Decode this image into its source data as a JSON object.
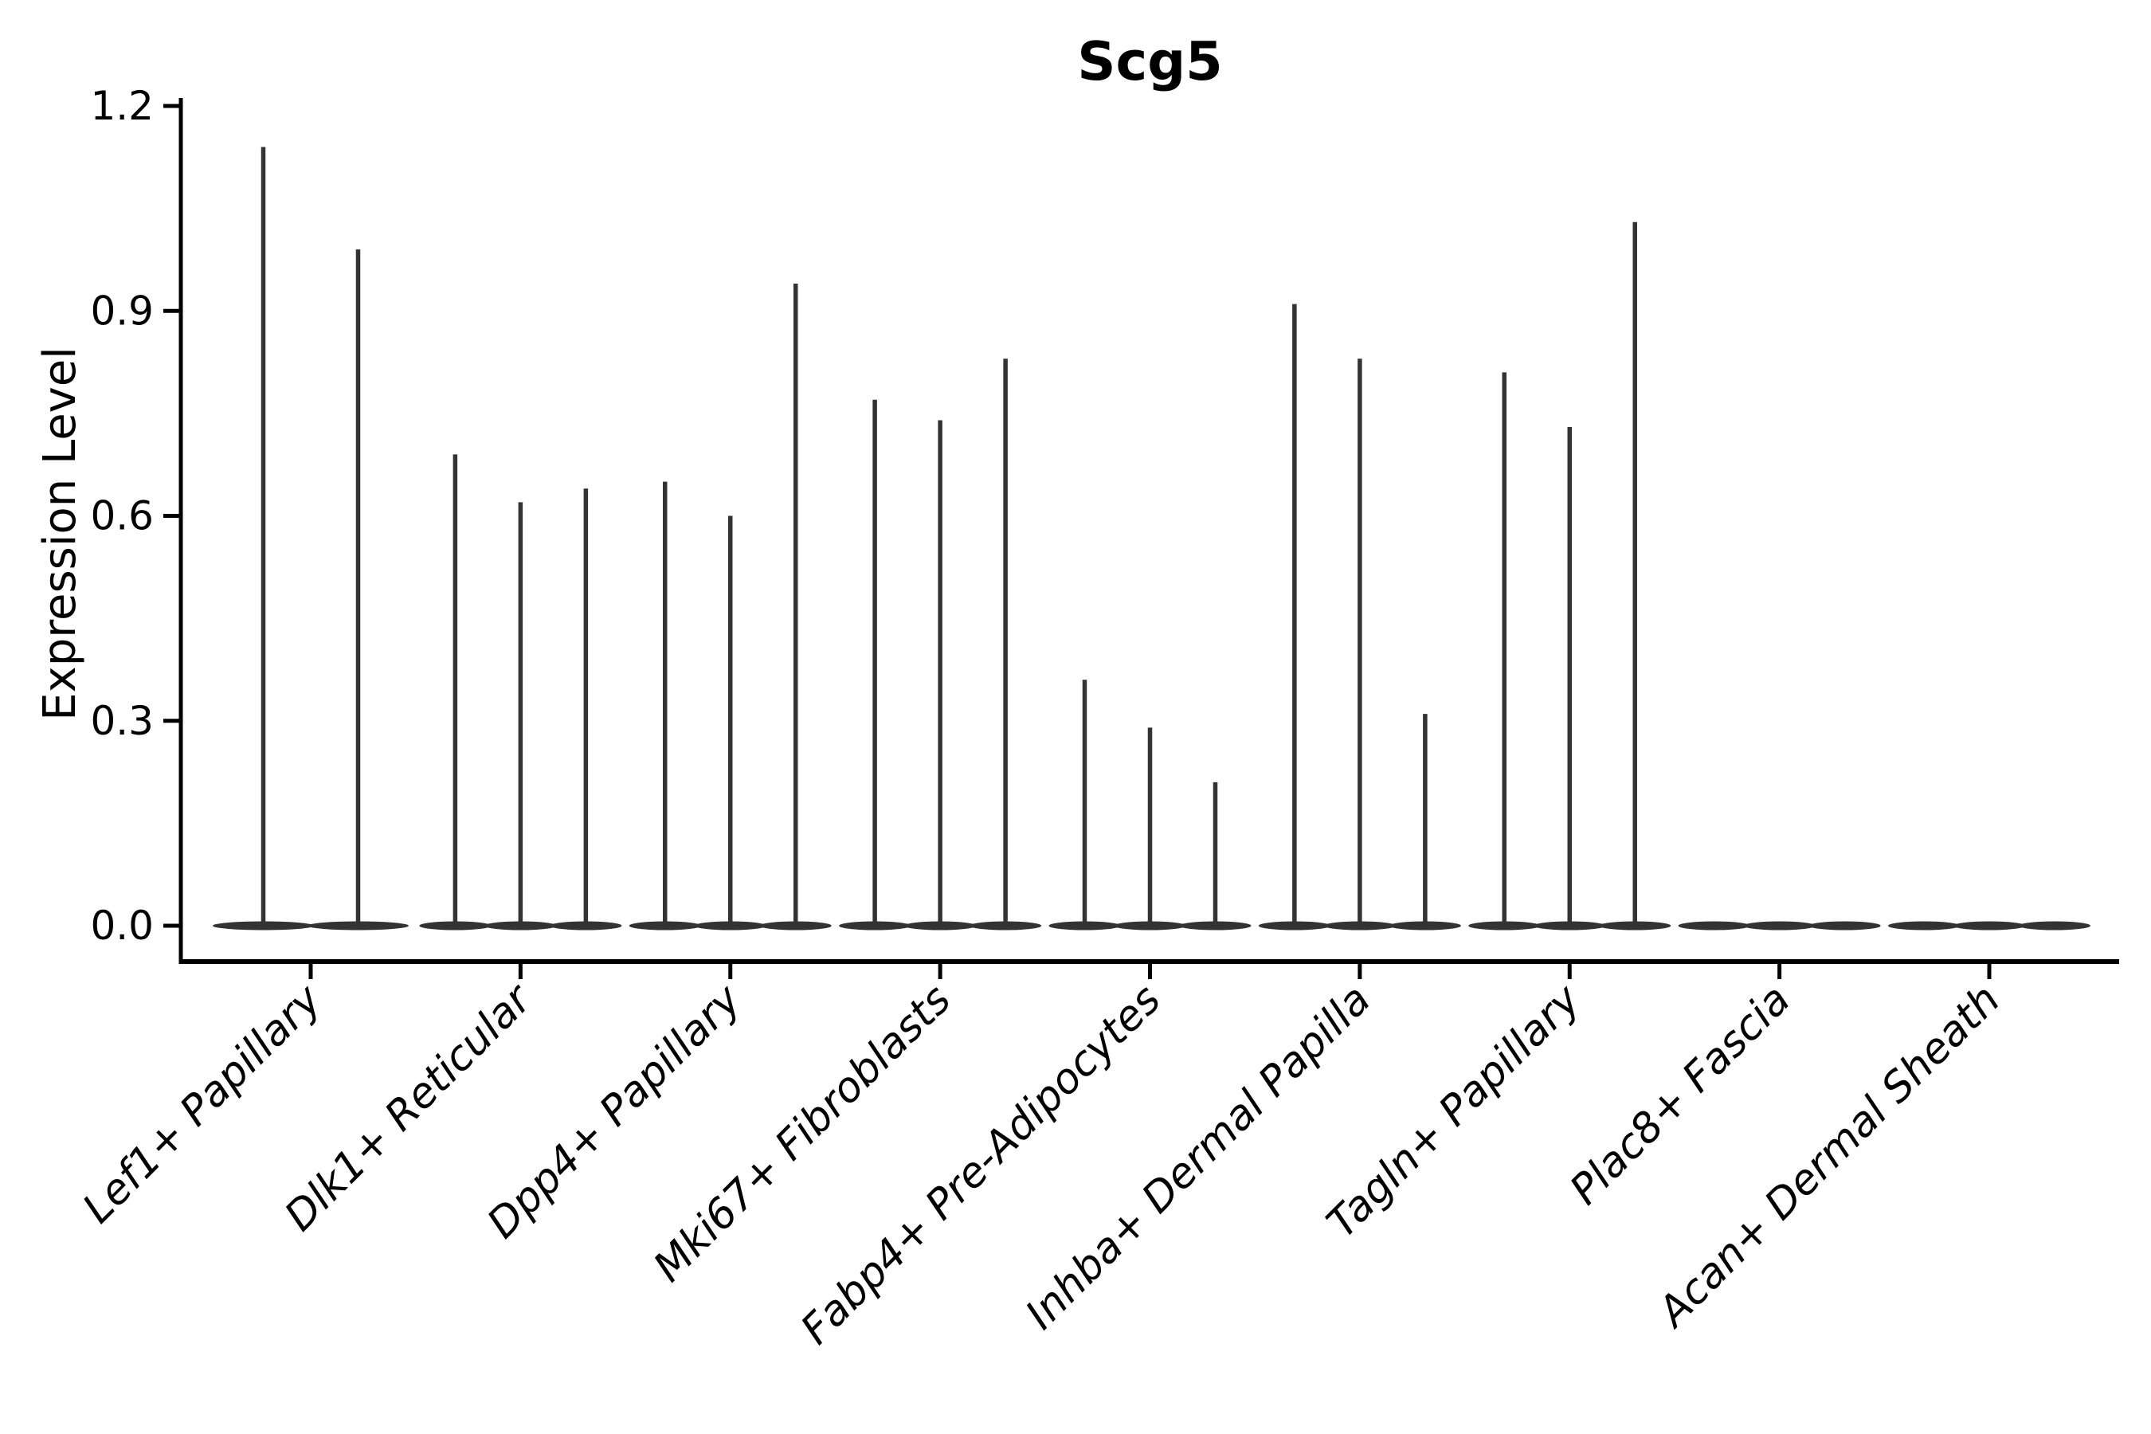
{
  "figure": {
    "title": "Scg5",
    "y_axis_title": "Expression Level"
  },
  "chart_data": {
    "type": "violin",
    "title": "Scg5",
    "xlabel": "",
    "ylabel": "Expression Level",
    "ylim": [
      0.0,
      1.26
    ],
    "yticks": [
      0.0,
      0.3,
      0.6,
      0.9,
      1.2
    ],
    "ytick_labels": [
      "0.0",
      "0.3",
      "0.6",
      "0.9",
      "1.2"
    ],
    "grid": false,
    "legend_position": "none",
    "categories": [
      "Lef1+ Papillary",
      "Dlk1+ Reticular",
      "Dpp4+ Papillary",
      "Mki67+ Fibroblasts",
      "Fabp4+ Pre-Adipocytes",
      "Inhba+ Dermal Papilla",
      "Tagln+ Papillary",
      "Plac8+ Fascia",
      "Acan+ Dermal Sheath"
    ],
    "groups": [
      {
        "label": "Lef1+ Papillary",
        "violin_peaks": [
          1.14,
          0.99
        ]
      },
      {
        "label": "Dlk1+ Reticular",
        "violin_peaks": [
          0.69,
          0.62,
          0.64
        ]
      },
      {
        "label": "Dpp4+ Papillary",
        "violin_peaks": [
          0.65,
          0.6,
          0.94
        ]
      },
      {
        "label": "Mki67+ Fibroblasts",
        "violin_peaks": [
          0.77,
          0.74,
          0.83
        ]
      },
      {
        "label": "Fabp4+ Pre-Adipocytes",
        "violin_peaks": [
          0.36,
          0.29,
          0.21
        ]
      },
      {
        "label": "Inhba+ Dermal Papilla",
        "violin_peaks": [
          0.91,
          0.83,
          0.31
        ]
      },
      {
        "label": "Tagln+ Papillary",
        "violin_peaks": [
          0.81,
          0.73,
          1.03
        ]
      },
      {
        "label": "Plac8+ Fascia",
        "violin_peaks": [
          0.0,
          0.0,
          0.0
        ]
      },
      {
        "label": "Acan+ Dermal Sheath",
        "violin_peaks": [
          0.0,
          0.0,
          0.0
        ]
      }
    ],
    "violin_color": "#333333",
    "axis_color": "#000000",
    "text_color": "#000000"
  }
}
